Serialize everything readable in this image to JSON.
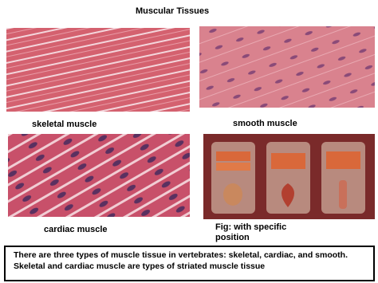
{
  "header": {
    "title": "Muscular Tissues"
  },
  "panels": [
    {
      "label": "skeletal muscle"
    },
    {
      "label": "smooth muscle"
    },
    {
      "label": "cardiac muscle"
    },
    {
      "label": "Fig: with specific position"
    }
  ],
  "description": "There are three types of muscle tissue in vertebrates: skeletal, cardiac, and smooth. Skeletal and cardiac muscle are types of striated muscle tissue"
}
